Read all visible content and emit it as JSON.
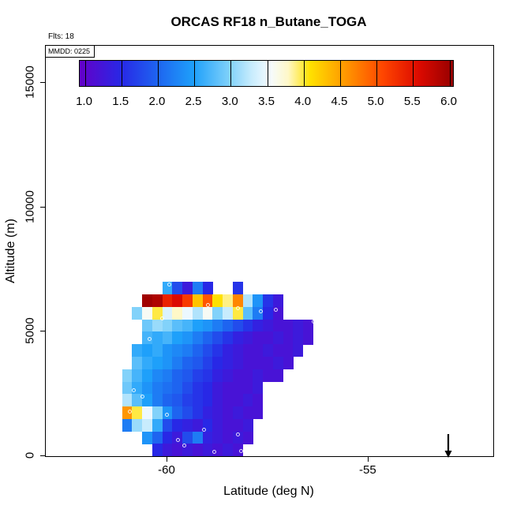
{
  "title": "ORCAS RF18 n_Butane_TOGA",
  "annotations": {
    "flts": "Flts: 18",
    "mmdd": "MMDD: 0225"
  },
  "axes": {
    "xlabel": "Latitude (deg N)",
    "ylabel": "Altitude (m)",
    "x_range": [
      -63.02,
      -51.9
    ],
    "y_range": [
      0,
      16500
    ],
    "x_ticks": [
      {
        "value": -60,
        "label": "-60"
      },
      {
        "value": -55,
        "label": "-55"
      }
    ],
    "y_ticks": [
      {
        "value": 0,
        "label": "0"
      },
      {
        "value": 5000,
        "label": "5000"
      },
      {
        "value": 10000,
        "label": "10000"
      },
      {
        "value": 15000,
        "label": "15000"
      }
    ]
  },
  "colorbar": {
    "bar_value_range": [
      0.93,
      6.07
    ],
    "tick_values": [
      1.0,
      1.5,
      2.0,
      2.5,
      3.0,
      3.5,
      4.0,
      4.5,
      5.0,
      5.5,
      6.0
    ],
    "tick_labels": [
      "1.0",
      "1.5",
      "2.0",
      "2.5",
      "3.0",
      "3.5",
      "4.0",
      "4.5",
      "5.0",
      "5.5",
      "6.0"
    ],
    "palette": [
      [
        0.93,
        "#6400C8"
      ],
      [
        1.5,
        "#2828E6"
      ],
      [
        2.0,
        "#1E64F0"
      ],
      [
        2.5,
        "#1EA0FA"
      ],
      [
        3.0,
        "#82D2FA"
      ],
      [
        3.3,
        "#C8ECFD"
      ],
      [
        3.55,
        "#F5FBFF"
      ],
      [
        3.8,
        "#FFF8C8"
      ],
      [
        4.1,
        "#FFE100"
      ],
      [
        4.6,
        "#FF9600"
      ],
      [
        5.1,
        "#FF4600"
      ],
      [
        5.6,
        "#DC0A00"
      ],
      [
        6.07,
        "#960000"
      ]
    ]
  },
  "chart_data": {
    "type": "heatmap",
    "title": "ORCAS RF18 n_Butane_TOGA",
    "xlabel": "Latitude (deg N)",
    "ylabel": "Altitude (m)",
    "value_range": [
      1.0,
      6.0
    ],
    "lat_bin": 0.25,
    "alt_bin": 500,
    "latitudes": [
      -61.0,
      -60.75,
      -60.5,
      -60.25,
      -60.0,
      -59.75,
      -59.5,
      -59.25,
      -59.0,
      -58.75,
      -58.5,
      -58.25,
      -58.0,
      -57.75,
      -57.5,
      -57.25,
      -57.0,
      -56.75,
      -56.5
    ],
    "altitudes": [
      6750,
      6250,
      5750,
      5250,
      4750,
      4250,
      3750,
      3250,
      2750,
      2250,
      1750,
      1250,
      750,
      250
    ],
    "values": [
      [
        null,
        null,
        null,
        null,
        2.6,
        1.8,
        1.3,
        2.2,
        1.5,
        null,
        null,
        1.6,
        null,
        null,
        null,
        null,
        null,
        null,
        null
      ],
      [
        null,
        null,
        6.0,
        5.9,
        5.4,
        5.6,
        5.2,
        4.3,
        5.0,
        4.1,
        3.9,
        4.7,
        3.2,
        2.4,
        1.6,
        1.3,
        null,
        null,
        null
      ],
      [
        null,
        3.0,
        3.6,
        4.0,
        3.4,
        3.8,
        3.5,
        3.2,
        3.6,
        3.0,
        3.3,
        4.0,
        2.8,
        2.2,
        1.5,
        1.2,
        null,
        null,
        null
      ],
      [
        null,
        null,
        2.9,
        3.1,
        3.0,
        2.8,
        2.7,
        2.5,
        2.4,
        2.2,
        2.0,
        1.8,
        1.6,
        1.4,
        1.3,
        1.2,
        1.2,
        1.3,
        1.2
      ],
      [
        null,
        null,
        2.7,
        2.6,
        2.7,
        2.5,
        2.4,
        2.2,
        2.0,
        1.8,
        1.6,
        1.4,
        1.3,
        1.2,
        1.2,
        1.3,
        1.2,
        1.3,
        1.2
      ],
      [
        null,
        2.6,
        2.5,
        2.6,
        2.4,
        2.3,
        2.2,
        2.0,
        1.8,
        1.6,
        1.4,
        1.3,
        1.2,
        1.2,
        1.3,
        1.2,
        1.2,
        1.3,
        null
      ],
      [
        null,
        2.8,
        2.6,
        2.5,
        2.4,
        2.2,
        2.0,
        1.9,
        1.7,
        1.5,
        1.4,
        1.3,
        1.2,
        1.2,
        1.2,
        1.3,
        1.2,
        null,
        null
      ],
      [
        3.0,
        2.7,
        2.5,
        2.3,
        2.2,
        2.0,
        1.9,
        1.7,
        1.6,
        1.4,
        1.3,
        1.2,
        1.2,
        1.3,
        1.2,
        1.2,
        null,
        null,
        null
      ],
      [
        2.9,
        2.6,
        2.4,
        2.2,
        2.1,
        2.0,
        1.8,
        1.6,
        1.5,
        1.3,
        1.2,
        1.2,
        1.2,
        1.3,
        null,
        null,
        null,
        null,
        null
      ],
      [
        3.2,
        2.8,
        2.5,
        2.2,
        2.0,
        1.9,
        1.7,
        1.6,
        1.5,
        1.3,
        1.2,
        1.2,
        1.3,
        1.2,
        null,
        null,
        null,
        null,
        null
      ],
      [
        4.6,
        4.0,
        3.5,
        3.0,
        2.4,
        2.0,
        1.8,
        1.6,
        1.4,
        1.3,
        1.2,
        1.3,
        1.2,
        1.2,
        null,
        null,
        null,
        null,
        null
      ],
      [
        2.2,
        3.1,
        3.3,
        2.6,
        1.8,
        1.5,
        1.4,
        1.3,
        1.5,
        1.3,
        1.2,
        1.2,
        1.3,
        null,
        null,
        null,
        null,
        null,
        null
      ],
      [
        null,
        null,
        2.4,
        2.0,
        1.5,
        1.3,
        1.8,
        2.2,
        1.4,
        1.3,
        1.2,
        1.3,
        1.2,
        null,
        null,
        null,
        null,
        null,
        null
      ],
      [
        null,
        null,
        null,
        1.5,
        1.3,
        1.2,
        1.3,
        1.2,
        1.3,
        1.2,
        1.3,
        1.2,
        null,
        null,
        null,
        null,
        null,
        null,
        null
      ]
    ],
    "markers": [
      {
        "lat": -59.96,
        "alt": 6900
      },
      {
        "lat": -60.12,
        "alt": 5550
      },
      {
        "lat": -59.0,
        "alt": 6080
      },
      {
        "lat": -58.25,
        "alt": 5960
      },
      {
        "lat": -57.67,
        "alt": 5810
      },
      {
        "lat": -57.31,
        "alt": 5900
      },
      {
        "lat": -56.37,
        "alt": 5400
      },
      {
        "lat": -60.45,
        "alt": 4720
      },
      {
        "lat": -56.49,
        "alt": 4250
      },
      {
        "lat": -60.84,
        "alt": 2640
      },
      {
        "lat": -60.61,
        "alt": 2390
      },
      {
        "lat": -60.94,
        "alt": 1800
      },
      {
        "lat": -60.02,
        "alt": 1680
      },
      {
        "lat": -59.08,
        "alt": 1060
      },
      {
        "lat": -58.25,
        "alt": 870
      },
      {
        "lat": -59.73,
        "alt": 650
      },
      {
        "lat": -59.57,
        "alt": 440
      },
      {
        "lat": -58.84,
        "alt": 190
      },
      {
        "lat": -58.16,
        "alt": 220
      },
      {
        "lat": -57.57,
        "alt": 160
      }
    ],
    "arrow": {
      "lat": -53.0,
      "alt_from": 900,
      "alt_to": 40
    }
  }
}
